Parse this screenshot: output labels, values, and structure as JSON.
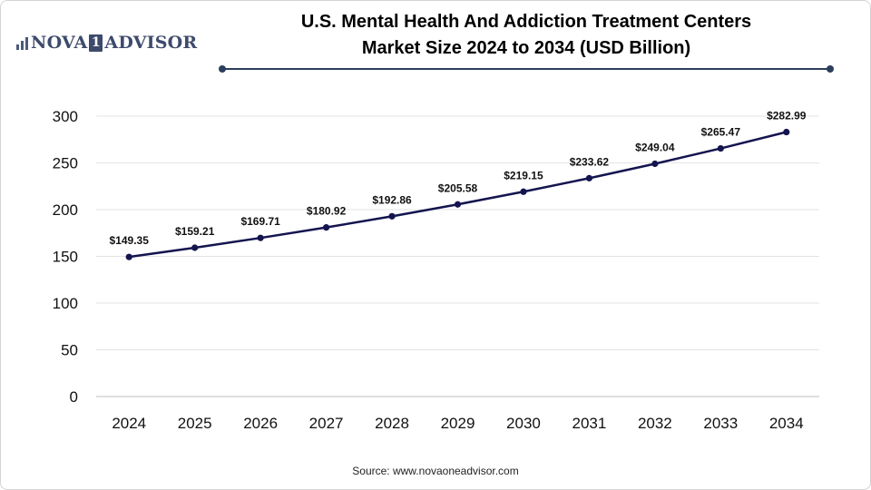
{
  "brand": {
    "logo_left": "NOVA",
    "logo_badge": "1",
    "logo_right": "ADVISOR",
    "logo_icon": "bar-chart-icon",
    "color": "#3d4a6b"
  },
  "chart_data": {
    "type": "line",
    "title_line1": "U.S. Mental Health And Addiction Treatment Centers",
    "title_line2": "Market Size 2024 to 2034 (USD Billion)",
    "xlabel": "",
    "ylabel": "",
    "categories": [
      "2024",
      "2025",
      "2026",
      "2027",
      "2028",
      "2029",
      "2030",
      "2031",
      "2032",
      "2033",
      "2034"
    ],
    "series": [
      {
        "values": [
          149.35,
          159.21,
          169.71,
          180.92,
          192.86,
          205.58,
          219.15,
          233.62,
          249.04,
          265.47,
          282.99
        ],
        "labels": [
          "$149.35",
          "$159.21",
          "$169.71",
          "$180.92",
          "$192.86",
          "$205.58",
          "$219.15",
          "$233.62",
          "$249.04",
          "$265.47",
          "$282.99"
        ],
        "color": "#14144f"
      }
    ],
    "ylim": [
      0,
      300
    ],
    "yticks": [
      0,
      50,
      100,
      150,
      200,
      250,
      300
    ],
    "grid": true,
    "legend": "none"
  },
  "source": "Source: www.novaoneadvisor.com"
}
